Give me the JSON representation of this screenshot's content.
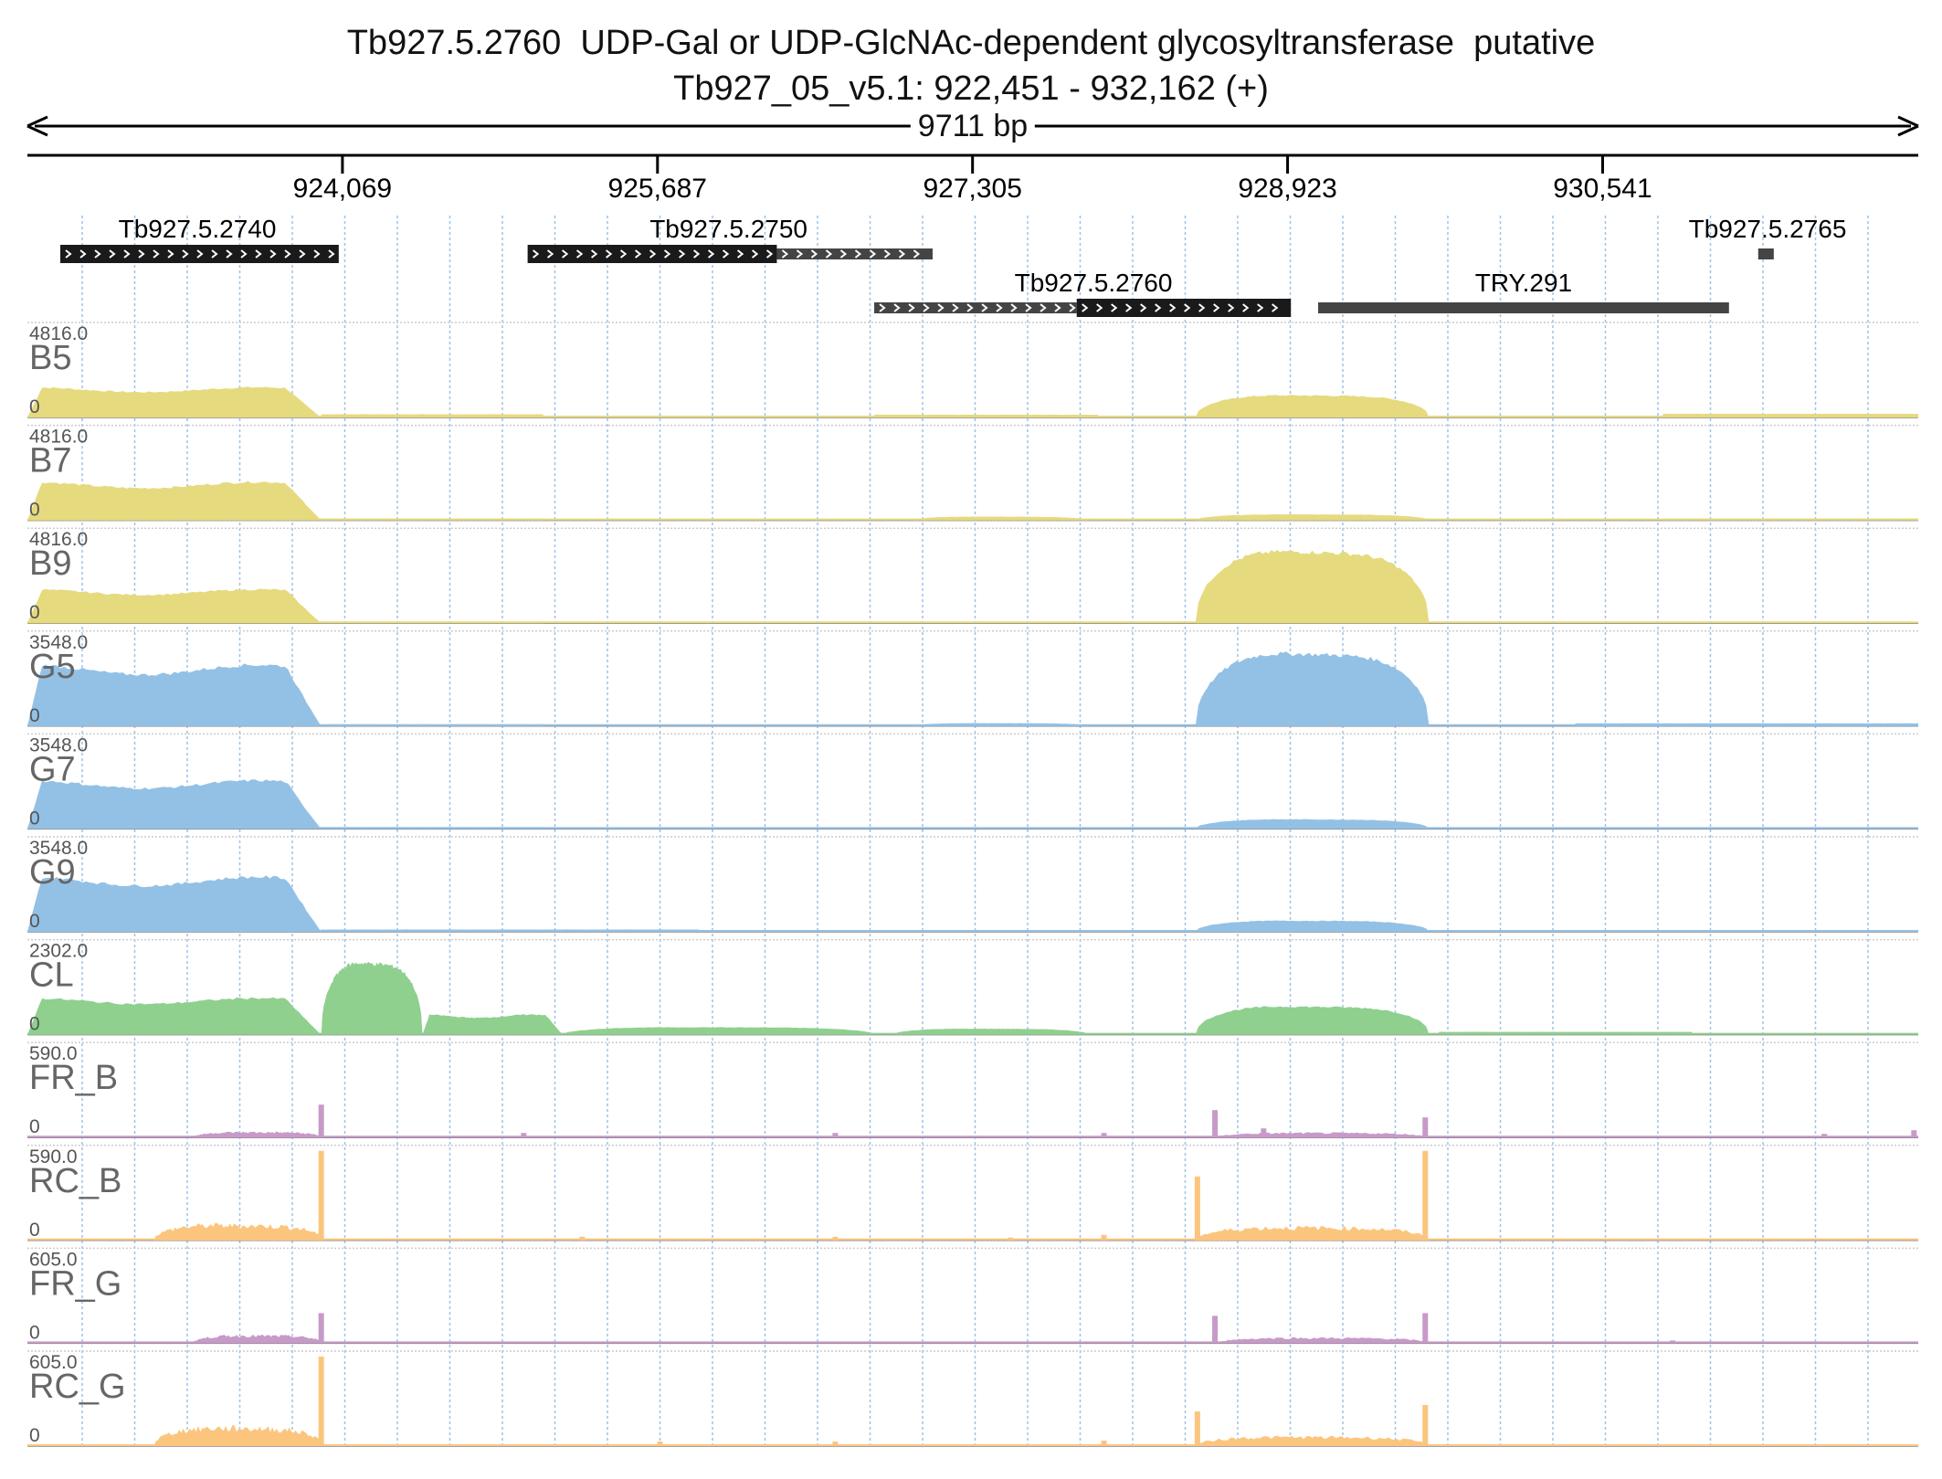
{
  "title": {
    "line1": "Tb927.5.2760  UDP-Gal or UDP-GlcNAc-dependent glycosyltransferase  putative",
    "line2": "Tb927_05_v5.1: 922,451 - 932,162 (+)"
  },
  "span_label": "9711 bp",
  "colors": {
    "yellow": "#e6da7e",
    "blue": "#93c1e6",
    "green": "#8fd08f",
    "purple": "#c79ac9",
    "orange": "#fcc57e",
    "gene_dark": "#1a1a1a",
    "gene_grey": "#444444",
    "grid": "#9ec3e6"
  },
  "chart_data": {
    "type": "area",
    "region": {
      "chrom": "Tb927_05_v5.1",
      "start": 922451,
      "end": 932162,
      "strand": "+"
    },
    "axis_ticks": [
      924069,
      925687,
      927305,
      928923,
      930541
    ],
    "axis_tick_labels": [
      "924,069",
      "925,687",
      "927,305",
      "928,923",
      "930,541"
    ],
    "genes": [
      {
        "name": "Tb927.5.2740",
        "start": 922620,
        "end": 924050,
        "parts": [
          {
            "start": 922620,
            "end": 924050,
            "style": "cds"
          }
        ]
      },
      {
        "name": "Tb927.5.2750",
        "start": 925020,
        "end": 927100,
        "parts": [
          {
            "start": 925020,
            "end": 926300,
            "style": "cds"
          },
          {
            "start": 926300,
            "end": 927100,
            "style": "utr"
          }
        ]
      },
      {
        "name": "Tb927.5.2760",
        "start": 926800,
        "end": 928940,
        "parts": [
          {
            "start": 926800,
            "end": 927840,
            "style": "utr"
          },
          {
            "start": 927840,
            "end": 928940,
            "style": "cds"
          }
        ]
      },
      {
        "name": "TRY.291",
        "start": 929080,
        "end": 931190,
        "parts": [
          {
            "start": 929080,
            "end": 931190,
            "style": "solid"
          }
        ]
      },
      {
        "name": "Tb927.5.2765",
        "start": 931340,
        "end": 931420,
        "parts": [
          {
            "start": 931340,
            "end": 931420,
            "style": "solid"
          }
        ]
      }
    ],
    "tracks": [
      {
        "name": "B5",
        "max": "4816.0",
        "min": "0",
        "color": "yellow",
        "kind": "smooth",
        "segments": [
          {
            "start": 922451,
            "end": 923960,
            "level": 0.33,
            "shape": "plateau"
          },
          {
            "start": 923960,
            "end": 925100,
            "level": 0.035,
            "shape": "flat"
          },
          {
            "start": 926800,
            "end": 927950,
            "level": 0.03,
            "shape": "flat"
          },
          {
            "start": 928450,
            "end": 929650,
            "level": 0.3,
            "shape": "hump"
          },
          {
            "start": 930850,
            "end": 932162,
            "level": 0.04,
            "shape": "flat"
          }
        ]
      },
      {
        "name": "B7",
        "max": "4816.0",
        "min": "0",
        "color": "yellow",
        "kind": "smooth",
        "segments": [
          {
            "start": 922451,
            "end": 923960,
            "level": 0.42,
            "shape": "plateau"
          },
          {
            "start": 923960,
            "end": 925100,
            "level": 0.02,
            "shape": "flat"
          },
          {
            "start": 927000,
            "end": 927900,
            "level": 0.05,
            "shape": "hump"
          },
          {
            "start": 928450,
            "end": 929650,
            "level": 0.08,
            "shape": "hump"
          },
          {
            "start": 930850,
            "end": 932162,
            "level": 0.02,
            "shape": "flat"
          }
        ]
      },
      {
        "name": "B9",
        "max": "4816.0",
        "min": "0",
        "color": "yellow",
        "kind": "smooth",
        "segments": [
          {
            "start": 922451,
            "end": 923960,
            "level": 0.37,
            "shape": "plateau"
          },
          {
            "start": 923960,
            "end": 925100,
            "level": 0.015,
            "shape": "flat"
          },
          {
            "start": 928450,
            "end": 929650,
            "level": 0.97,
            "shape": "hump"
          }
        ]
      },
      {
        "name": "G5",
        "max": "3548.0",
        "min": "0",
        "color": "blue",
        "kind": "smooth",
        "segments": [
          {
            "start": 922451,
            "end": 923960,
            "level": 0.67,
            "shape": "plateau"
          },
          {
            "start": 923960,
            "end": 925100,
            "level": 0.02,
            "shape": "flat"
          },
          {
            "start": 927000,
            "end": 927900,
            "level": 0.04,
            "shape": "hump"
          },
          {
            "start": 928450,
            "end": 929650,
            "level": 0.98,
            "shape": "hump"
          },
          {
            "start": 930400,
            "end": 932162,
            "level": 0.03,
            "shape": "flat"
          }
        ]
      },
      {
        "name": "G7",
        "max": "3548.0",
        "min": "0",
        "color": "blue",
        "kind": "smooth",
        "segments": [
          {
            "start": 922451,
            "end": 923960,
            "level": 0.53,
            "shape": "plateau"
          },
          {
            "start": 923960,
            "end": 925100,
            "level": 0.02,
            "shape": "flat"
          },
          {
            "start": 928450,
            "end": 929650,
            "level": 0.13,
            "shape": "hump"
          }
        ]
      },
      {
        "name": "G9",
        "max": "3548.0",
        "min": "0",
        "color": "blue",
        "kind": "smooth",
        "segments": [
          {
            "start": 922451,
            "end": 923960,
            "level": 0.6,
            "shape": "plateau"
          },
          {
            "start": 923960,
            "end": 925900,
            "level": 0.025,
            "shape": "flat"
          },
          {
            "start": 928450,
            "end": 929650,
            "level": 0.15,
            "shape": "hump"
          }
        ]
      },
      {
        "name": "CL",
        "max": "2302.0",
        "min": "0",
        "color": "green",
        "kind": "smooth",
        "segments": [
          {
            "start": 922451,
            "end": 923960,
            "level": 0.4,
            "shape": "plateau"
          },
          {
            "start": 923960,
            "end": 924480,
            "level": 0.97,
            "shape": "hump"
          },
          {
            "start": 924480,
            "end": 925200,
            "level": 0.22,
            "shape": "plateau"
          },
          {
            "start": 925200,
            "end": 926800,
            "level": 0.1,
            "shape": "hump"
          },
          {
            "start": 926900,
            "end": 927900,
            "level": 0.08,
            "shape": "hump"
          },
          {
            "start": 928450,
            "end": 929650,
            "level": 0.38,
            "shape": "hump"
          },
          {
            "start": 929700,
            "end": 931000,
            "level": 0.03,
            "shape": "flat"
          }
        ]
      },
      {
        "name": "FR_B",
        "max": "590.0",
        "min": "0",
        "color": "purple",
        "kind": "spiky",
        "segments": [
          {
            "start": 923300,
            "end": 923970,
            "level": 0.07,
            "shape": "hump"
          },
          {
            "start": 928550,
            "end": 929650,
            "level": 0.06,
            "shape": "hump"
          }
        ],
        "spikes": [
          {
            "pos": 923960,
            "level": 0.36
          },
          {
            "pos": 928550,
            "level": 0.3
          },
          {
            "pos": 928800,
            "level": 0.1
          },
          {
            "pos": 929630,
            "level": 0.22
          },
          {
            "pos": 925000,
            "level": 0.05
          },
          {
            "pos": 926600,
            "level": 0.05
          },
          {
            "pos": 927980,
            "level": 0.05
          },
          {
            "pos": 931680,
            "level": 0.04
          },
          {
            "pos": 932140,
            "level": 0.08
          }
        ]
      },
      {
        "name": "RC_B",
        "max": "590.0",
        "min": "0",
        "color": "orange",
        "kind": "spiky",
        "segments": [
          {
            "start": 923100,
            "end": 923970,
            "level": 0.2,
            "shape": "hump"
          },
          {
            "start": 928450,
            "end": 929650,
            "level": 0.17,
            "shape": "hump"
          }
        ],
        "spikes": [
          {
            "pos": 923960,
            "level": 0.98
          },
          {
            "pos": 928460,
            "level": 0.7
          },
          {
            "pos": 929630,
            "level": 0.98
          },
          {
            "pos": 925300,
            "level": 0.04
          },
          {
            "pos": 926600,
            "level": 0.04
          },
          {
            "pos": 927500,
            "level": 0.03
          },
          {
            "pos": 927980,
            "level": 0.06
          }
        ]
      },
      {
        "name": "FR_G",
        "max": "605.0",
        "min": "0",
        "color": "purple",
        "kind": "spiky",
        "segments": [
          {
            "start": 923300,
            "end": 923970,
            "level": 0.1,
            "shape": "hump"
          },
          {
            "start": 928550,
            "end": 929650,
            "level": 0.07,
            "shape": "hump"
          }
        ],
        "spikes": [
          {
            "pos": 923960,
            "level": 0.33
          },
          {
            "pos": 928550,
            "level": 0.3
          },
          {
            "pos": 929630,
            "level": 0.33
          },
          {
            "pos": 930900,
            "level": 0.03
          }
        ]
      },
      {
        "name": "RC_G",
        "max": "605.0",
        "min": "0",
        "color": "orange",
        "kind": "spiky",
        "segments": [
          {
            "start": 923100,
            "end": 923970,
            "level": 0.24,
            "shape": "hump"
          },
          {
            "start": 928450,
            "end": 929650,
            "level": 0.12,
            "shape": "hump"
          }
        ],
        "spikes": [
          {
            "pos": 923960,
            "level": 0.98
          },
          {
            "pos": 928460,
            "level": 0.38
          },
          {
            "pos": 929630,
            "level": 0.45
          },
          {
            "pos": 925700,
            "level": 0.05
          },
          {
            "pos": 926600,
            "level": 0.05
          },
          {
            "pos": 927980,
            "level": 0.06
          }
        ]
      }
    ]
  }
}
